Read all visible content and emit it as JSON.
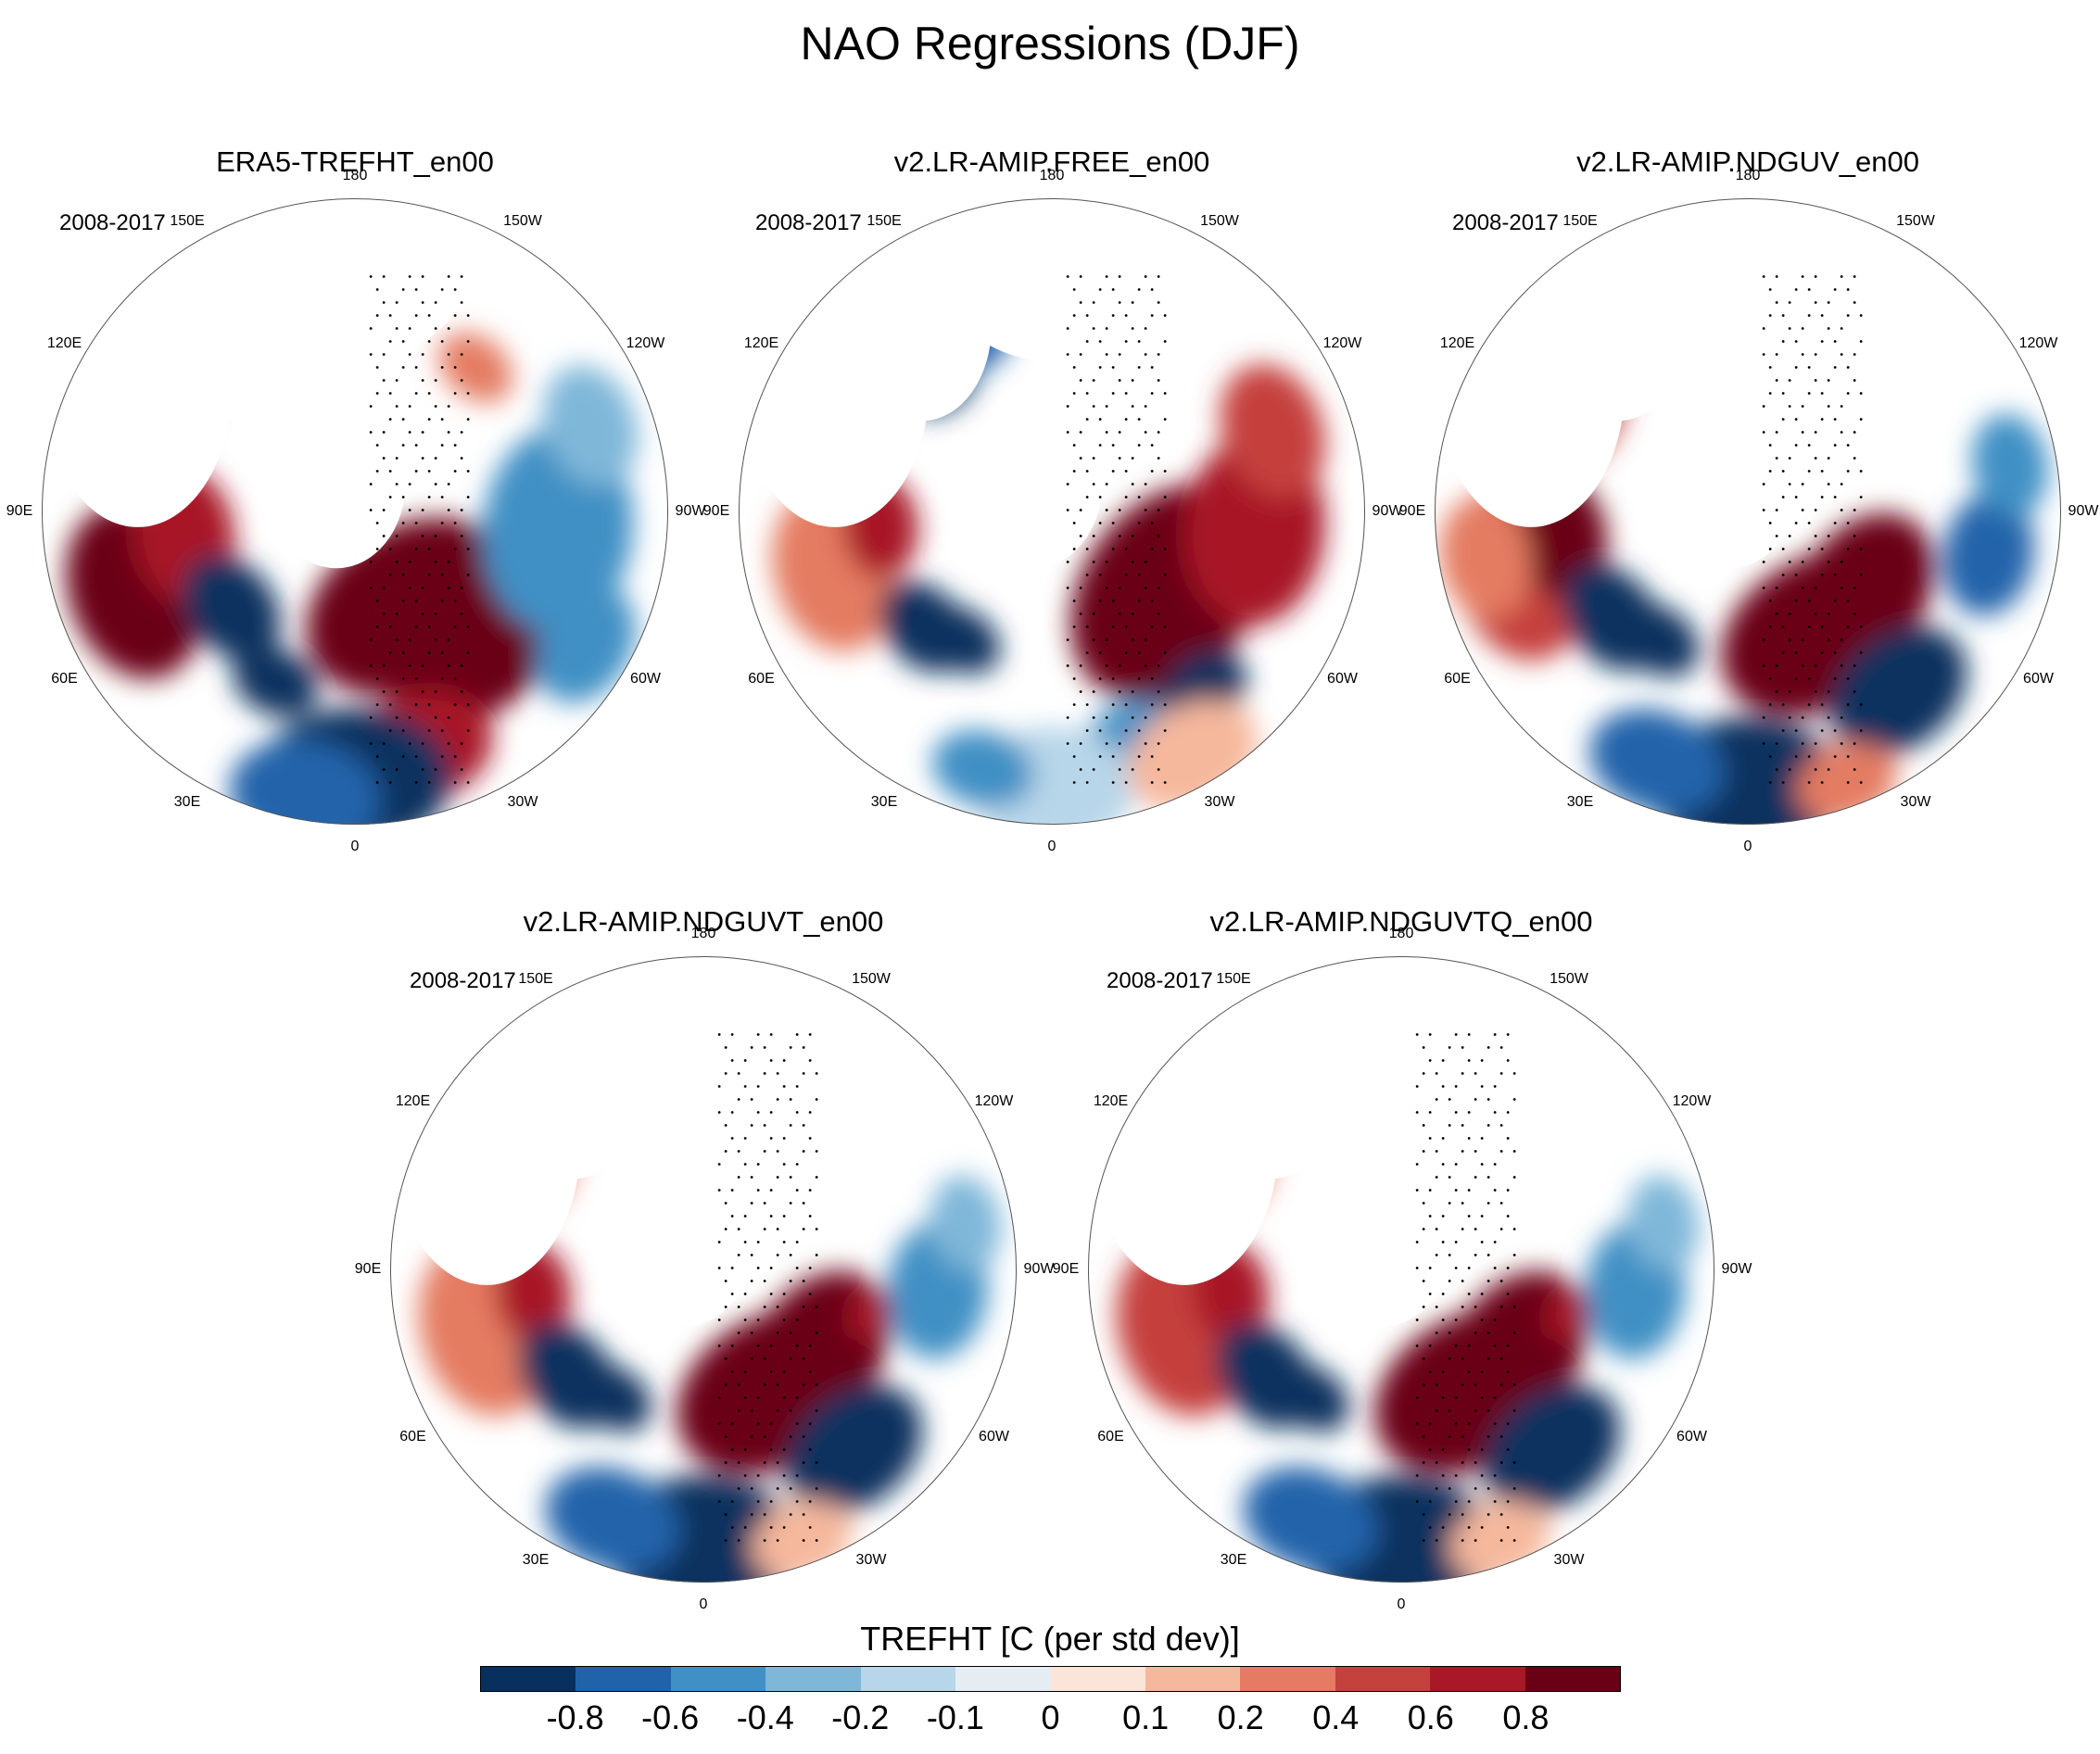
{
  "title": "NAO Regressions (DJF)",
  "panels": [
    {
      "title": "ERA5-TREFHT_en00",
      "period": "2008-2017"
    },
    {
      "title": "v2.LR-AMIP.FREE_en00",
      "period": "2008-2017"
    },
    {
      "title": "v2.LR-AMIP.NDGUV_en00",
      "period": "2008-2017"
    },
    {
      "title": "v2.LR-AMIP.NDGUVT_en00",
      "period": "2008-2017"
    },
    {
      "title": "v2.LR-AMIP.NDGUVTQ_en00",
      "period": "2008-2017"
    }
  ],
  "longitude_labels": [
    "0",
    "30E",
    "60E",
    "90E",
    "120E",
    "150E",
    "180",
    "150W",
    "120W",
    "90W",
    "60W",
    "30W"
  ],
  "colorbar": {
    "title": "TREFHT [C (per std dev)]",
    "tick_labels": [
      "-0.8",
      "-0.6",
      "-0.4",
      "-0.2",
      "-0.1",
      "0",
      "0.1",
      "0.2",
      "0.4",
      "0.6",
      "0.8"
    ],
    "colors": [
      "#08305f",
      "#2163aa",
      "#4090c5",
      "#7fb7d9",
      "#b7d6e9",
      "#e5edf3",
      "#fbe4d8",
      "#f6b89c",
      "#e47b62",
      "#c5413d",
      "#a81827",
      "#6a0016"
    ]
  }
}
